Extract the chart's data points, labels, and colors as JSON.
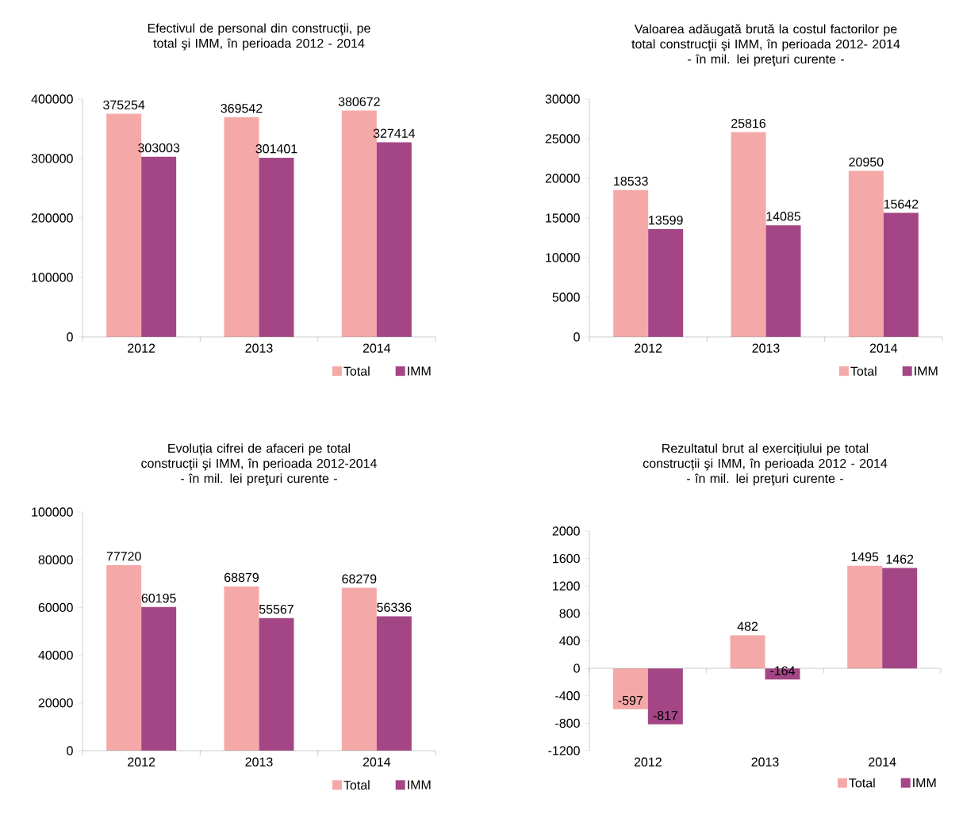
{
  "chart_data": [
    {
      "type": "bar",
      "title": "Efectivul de personal din construcţii, pe total şi IMM, în perioada 2012 - 2014",
      "categories": [
        "2012",
        "2013",
        "2014"
      ],
      "series": [
        {
          "name": "Total",
          "color": "#f4a9a8",
          "values": [
            375254,
            369542,
            380672
          ]
        },
        {
          "name": "IMM",
          "color": "#a44686",
          "values": [
            303003,
            301401,
            327414
          ]
        }
      ],
      "ylim": [
        0,
        400000
      ],
      "yticks": [
        0,
        100000,
        200000,
        300000,
        400000
      ],
      "data_labels": true,
      "legend": "bottom right"
    },
    {
      "type": "bar",
      "title": "Valoarea adăugată brută la costul factorilor pe total construcţii şi IMM, în perioada 2012- 2014",
      "subtitle": "- în mil. lei preţuri curente -",
      "categories": [
        "2012",
        "2013",
        "2014"
      ],
      "series": [
        {
          "name": "Total",
          "color": "#f4a9a8",
          "values": [
            18533,
            25816,
            20950
          ]
        },
        {
          "name": "IMM",
          "color": "#a44686",
          "values": [
            13599,
            14085,
            15642
          ]
        }
      ],
      "ylim": [
        0,
        30000
      ],
      "yticks": [
        0,
        5000,
        10000,
        15000,
        20000,
        25000,
        30000
      ],
      "data_labels": true,
      "legend": "bottom right"
    },
    {
      "type": "bar",
      "title": "Evoluția cifrei de afaceri pe total construcții şi IMM, în perioada 2012-2014",
      "subtitle": "- în mil. lei preţuri curente -",
      "categories": [
        "2012",
        "2013",
        "2014"
      ],
      "series": [
        {
          "name": "Total",
          "color": "#f4a9a8",
          "values": [
            77720,
            68879,
            68279
          ]
        },
        {
          "name": "IMM",
          "color": "#a44686",
          "values": [
            60195,
            55567,
            56336
          ]
        }
      ],
      "ylim": [
        0,
        100000
      ],
      "yticks": [
        0,
        20000,
        40000,
        60000,
        80000,
        100000
      ],
      "data_labels": true,
      "legend": "bottom right"
    },
    {
      "type": "bar",
      "title": "Rezultatul brut al exercițiului pe total construcții şi IMM, în perioada 2012 - 2014",
      "subtitle": "- în mil. lei preţuri curente -",
      "categories": [
        "2012",
        "2013",
        "2014"
      ],
      "series": [
        {
          "name": "Total",
          "color": "#f4a9a8",
          "values": [
            -597,
            482,
            1495
          ]
        },
        {
          "name": "IMM",
          "color": "#a44686",
          "values": [
            -817,
            -164,
            1462
          ]
        }
      ],
      "ylim": [
        -1200,
        2000
      ],
      "yticks": [
        -1200,
        -800,
        -400,
        0,
        400,
        800,
        1200,
        1600,
        2000
      ],
      "data_labels": true,
      "legend": "bottom right"
    }
  ]
}
